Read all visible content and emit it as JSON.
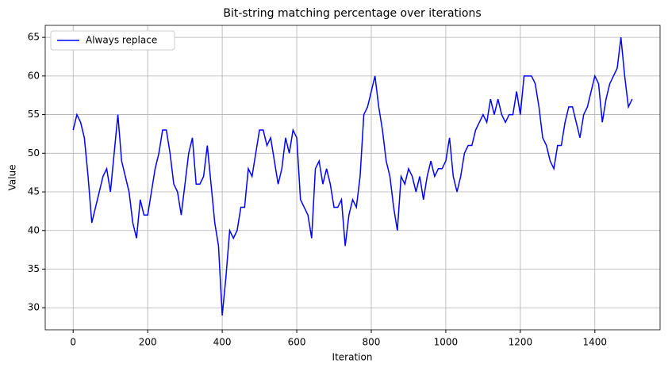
{
  "chart_data": {
    "type": "line",
    "title": "Bit-string matching percentage over iterations",
    "xlabel": "Iteration",
    "ylabel": "Value",
    "x": [
      0,
      10,
      20,
      30,
      40,
      50,
      60,
      70,
      80,
      90,
      100,
      110,
      120,
      130,
      140,
      150,
      160,
      170,
      180,
      190,
      200,
      210,
      220,
      230,
      240,
      250,
      260,
      270,
      280,
      290,
      300,
      310,
      320,
      330,
      340,
      350,
      360,
      370,
      380,
      390,
      400,
      410,
      420,
      430,
      440,
      450,
      460,
      470,
      480,
      490,
      500,
      510,
      520,
      530,
      540,
      550,
      560,
      570,
      580,
      590,
      600,
      610,
      620,
      630,
      640,
      650,
      660,
      670,
      680,
      690,
      700,
      710,
      720,
      730,
      740,
      750,
      760,
      770,
      780,
      790,
      800,
      810,
      820,
      830,
      840,
      850,
      860,
      870,
      880,
      890,
      900,
      910,
      920,
      930,
      940,
      950,
      960,
      970,
      980,
      990,
      1000,
      1010,
      1020,
      1030,
      1040,
      1050,
      1060,
      1070,
      1080,
      1090,
      1100,
      1110,
      1120,
      1130,
      1140,
      1150,
      1160,
      1170,
      1180,
      1190,
      1200,
      1210,
      1220,
      1230,
      1240,
      1250,
      1260,
      1270,
      1280,
      1290,
      1300,
      1310,
      1320,
      1330,
      1340,
      1350,
      1360,
      1370,
      1380,
      1390,
      1400,
      1410,
      1420,
      1430,
      1440,
      1450,
      1460,
      1470,
      1480,
      1490,
      1500
    ],
    "series": [
      {
        "name": "Always replace",
        "color": "#0000ff",
        "values": [
          53,
          55,
          54,
          52,
          47,
          41,
          43,
          45,
          47,
          48,
          45,
          50,
          55,
          49,
          47,
          45,
          41,
          39,
          44,
          42,
          42,
          45,
          48,
          50,
          53,
          53,
          50,
          46,
          45,
          42,
          46,
          50,
          52,
          46,
          46,
          47,
          51,
          46,
          41,
          38,
          29,
          34,
          40,
          39,
          40,
          43,
          43,
          48,
          47,
          50,
          53,
          53,
          51,
          52,
          49,
          46,
          48,
          52,
          50,
          53,
          52,
          44,
          43,
          42,
          39,
          48,
          49,
          46,
          48,
          46,
          43,
          43,
          44,
          38,
          42,
          44,
          43,
          47,
          55,
          56,
          58,
          60,
          56,
          53,
          49,
          47,
          43,
          40,
          47,
          46,
          48,
          47,
          45,
          47,
          44,
          47,
          49,
          47,
          48,
          48,
          49,
          52,
          47,
          45,
          47,
          50,
          51,
          51,
          53,
          54,
          55,
          54,
          57,
          55,
          57,
          55,
          54,
          55,
          55,
          58,
          55,
          60,
          60,
          60,
          59,
          56,
          52,
          51,
          49,
          48,
          51,
          51,
          54,
          56,
          56,
          54,
          52,
          55,
          56,
          58,
          60,
          59,
          54,
          57,
          59,
          60,
          61,
          65,
          60,
          56,
          57
        ]
      }
    ],
    "xlim": [
      -75,
      1575
    ],
    "ylim": [
      27.15,
      66.55
    ],
    "xticks": [
      0,
      200,
      400,
      600,
      800,
      1000,
      1200,
      1400
    ],
    "yticks": [
      30,
      35,
      40,
      45,
      50,
      55,
      60,
      65
    ],
    "grid": true,
    "legend": "upper left"
  }
}
